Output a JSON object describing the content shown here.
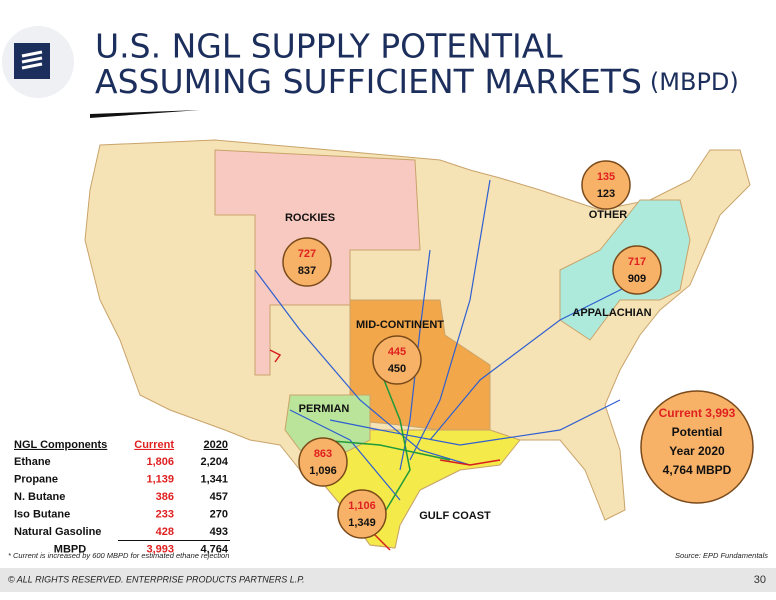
{
  "header": {
    "title_line1": "U.S. NGL SUPPLY POTENTIAL",
    "title_line2": "ASSUMING SUFFICIENT MARKETS",
    "unit": "(MBPD)"
  },
  "regions": [
    {
      "name": "ROCKIES",
      "current": "727",
      "potential": "837"
    },
    {
      "name": "MID-CONTINENT",
      "current": "445",
      "potential": "450"
    },
    {
      "name": "PERMIAN",
      "current": "863",
      "potential": "1,096"
    },
    {
      "name": "GULF COAST",
      "current": "1,106",
      "potential": "1,349"
    },
    {
      "name": "OTHER",
      "current": "135",
      "potential": "123"
    },
    {
      "name": "APPALACHIAN",
      "current": "717",
      "potential": "909"
    }
  ],
  "callout": {
    "current": "Current 3,993",
    "line2": "Potential",
    "line3": "Year 2020",
    "line4": "4,764 MBPD"
  },
  "table": {
    "columns": [
      "NGL Components",
      "Current",
      "2020"
    ],
    "rows": [
      [
        "Ethane",
        "1,806",
        "2,204"
      ],
      [
        "Propane",
        "1,139",
        "1,341"
      ],
      [
        "N. Butane",
        "386",
        "457"
      ],
      [
        "Iso Butane",
        "233",
        "270"
      ],
      [
        "Natural Gasoline",
        "428",
        "493"
      ],
      [
        "MBPD",
        "3,993",
        "4,764"
      ]
    ]
  },
  "footnote": "* Current is increased by 600 MBPD for estimated ethane rejection",
  "source": "Source:  EPD Fundamentals",
  "footer": {
    "copyright": "© ALL RIGHTS RESERVED. ENTERPRISE PRODUCTS PARTNERS L.P.",
    "page": "30"
  }
}
